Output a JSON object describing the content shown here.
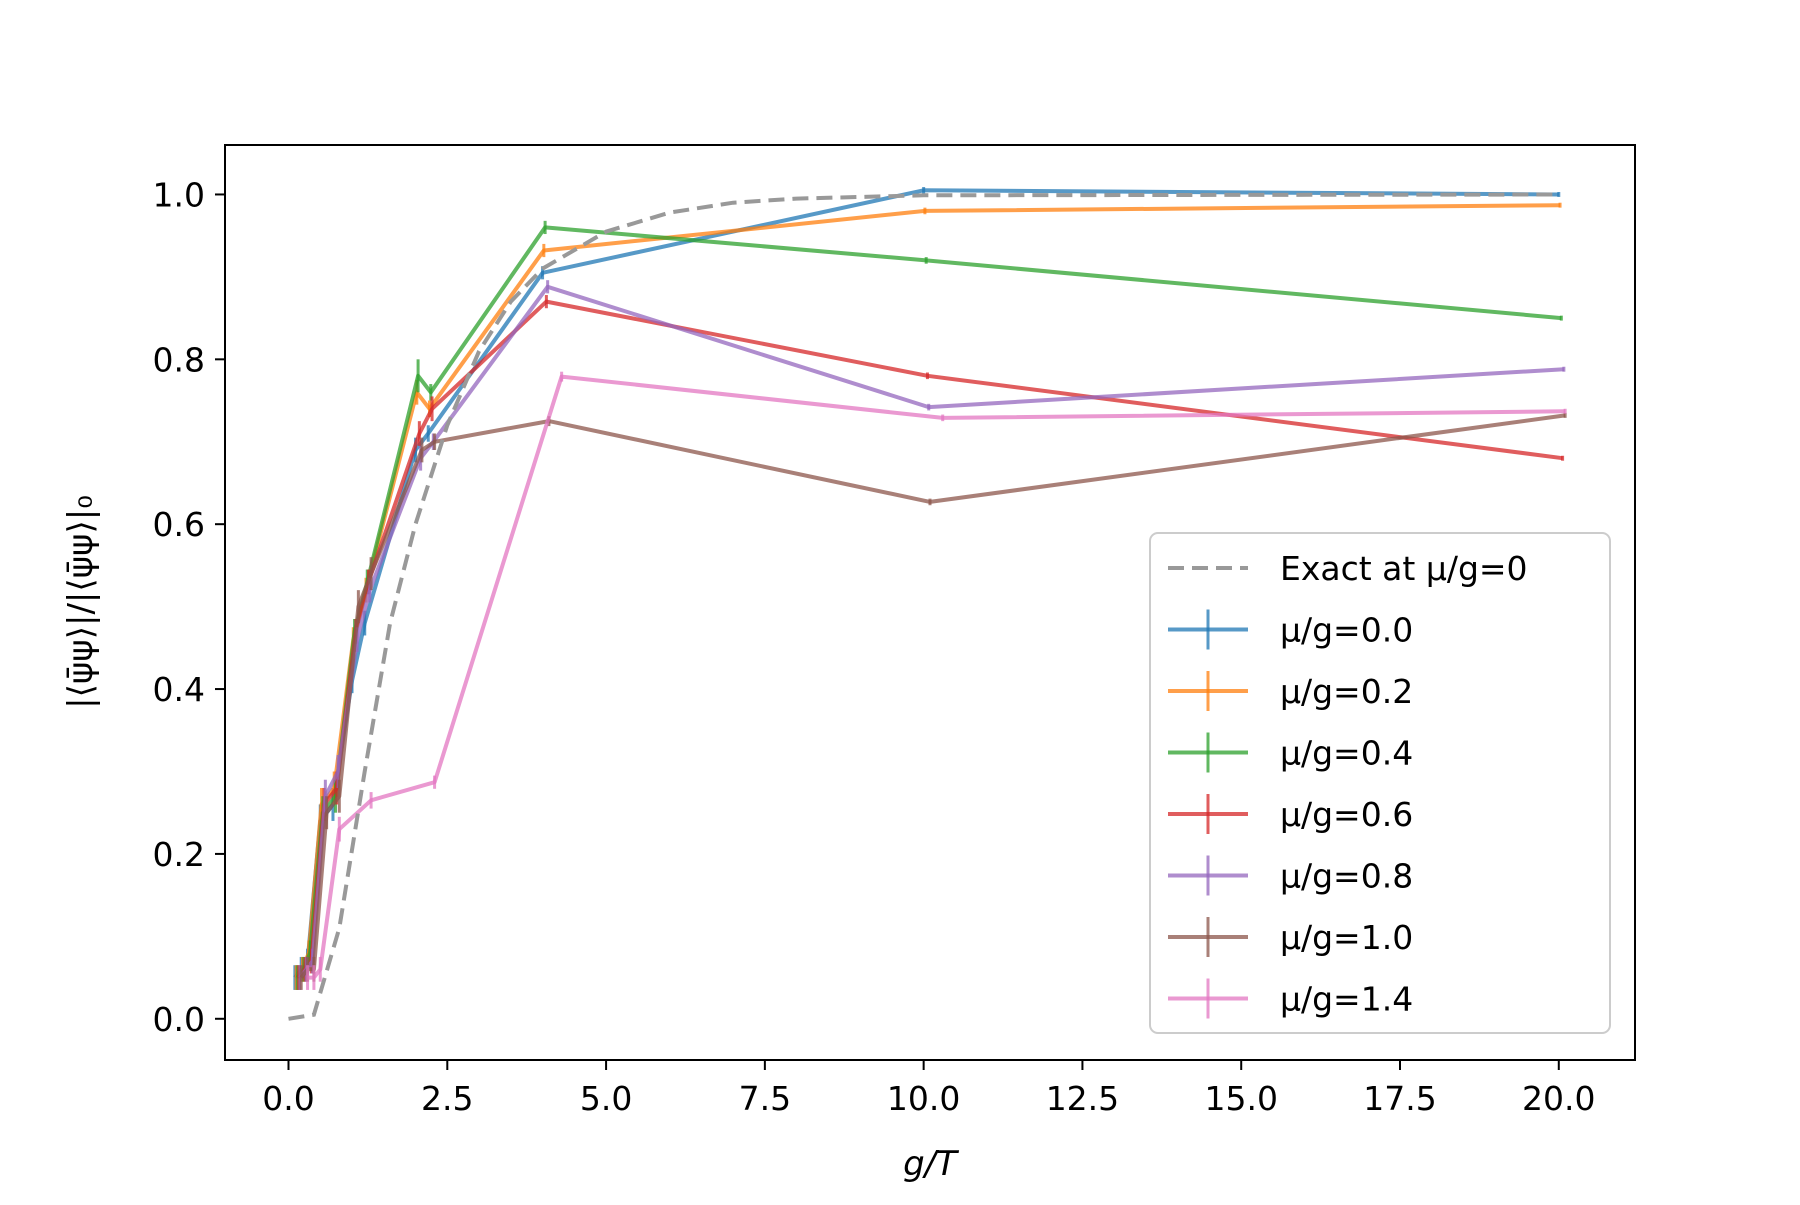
{
  "chart_data": {
    "type": "line",
    "title": "",
    "xlabel": "g/T",
    "ylabel": "|⟨ψ̄ψ⟩|/|⟨ψ̄ψ⟩|₀",
    "xlim": [
      -1.0,
      21.2
    ],
    "ylim": [
      -0.05,
      1.06
    ],
    "xticks": [
      0.0,
      2.5,
      5.0,
      7.5,
      10.0,
      12.5,
      15.0,
      17.5,
      20.0
    ],
    "xtick_labels": [
      "0.0",
      "2.5",
      "5.0",
      "7.5",
      "10.0",
      "12.5",
      "15.0",
      "17.5",
      "20.0"
    ],
    "yticks": [
      0.0,
      0.2,
      0.4,
      0.6,
      0.8,
      1.0
    ],
    "ytick_labels": [
      "0.0",
      "0.2",
      "0.4",
      "0.6",
      "0.8",
      "1.0"
    ],
    "grid": false,
    "legend_position": "lower right",
    "exact": {
      "name": "Exact at μ/g=0",
      "color": "#999999",
      "style": "dashed",
      "x": [
        0.0,
        0.4,
        0.8,
        1.2,
        1.6,
        2.0,
        2.5,
        3.0,
        3.5,
        4.0,
        5.0,
        6.0,
        7.0,
        8.0,
        10.0,
        20.0
      ],
      "y": [
        0.0,
        0.005,
        0.11,
        0.3,
        0.48,
        0.6,
        0.72,
        0.81,
        0.87,
        0.91,
        0.955,
        0.978,
        0.99,
        0.995,
        0.999,
        1.0
      ]
    },
    "series": [
      {
        "name": "μ/g=0.0",
        "color": "#1f77b4",
        "x": [
          0.1,
          0.2,
          0.3,
          0.5,
          0.7,
          1.0,
          1.2,
          2.0,
          2.2,
          4.0,
          10.0,
          20.0
        ],
        "y": [
          0.05,
          0.06,
          0.07,
          0.24,
          0.26,
          0.41,
          0.48,
          0.69,
          0.71,
          0.905,
          1.005,
          1.0
        ],
        "err": [
          0.015,
          0.015,
          0.015,
          0.02,
          0.02,
          0.015,
          0.015,
          0.015,
          0.01,
          0.008,
          0.004,
          0.003
        ]
      },
      {
        "name": "μ/g=0.2",
        "color": "#ff7f0e",
        "x": [
          0.12,
          0.22,
          0.32,
          0.52,
          0.72,
          1.02,
          1.22,
          2.02,
          2.22,
          4.02,
          10.02,
          20.02
        ],
        "y": [
          0.05,
          0.06,
          0.08,
          0.26,
          0.28,
          0.46,
          0.52,
          0.76,
          0.74,
          0.932,
          0.98,
          0.987
        ],
        "err": [
          0.015,
          0.015,
          0.015,
          0.02,
          0.02,
          0.015,
          0.015,
          0.015,
          0.01,
          0.008,
          0.004,
          0.003
        ]
      },
      {
        "name": "μ/g=0.4",
        "color": "#2ca02c",
        "x": [
          0.14,
          0.24,
          0.34,
          0.54,
          0.74,
          1.04,
          1.24,
          2.04,
          2.24,
          4.04,
          10.04,
          20.04
        ],
        "y": [
          0.05,
          0.06,
          0.08,
          0.25,
          0.27,
          0.47,
          0.53,
          0.78,
          0.76,
          0.96,
          0.92,
          0.85
        ],
        "err": [
          0.015,
          0.015,
          0.015,
          0.02,
          0.02,
          0.015,
          0.015,
          0.02,
          0.01,
          0.008,
          0.004,
          0.003
        ]
      },
      {
        "name": "μ/g=0.6",
        "color": "#d62728",
        "x": [
          0.16,
          0.26,
          0.36,
          0.56,
          0.76,
          1.06,
          1.26,
          2.06,
          2.26,
          4.06,
          10.06,
          20.06
        ],
        "y": [
          0.05,
          0.06,
          0.07,
          0.26,
          0.28,
          0.47,
          0.53,
          0.71,
          0.74,
          0.87,
          0.78,
          0.68
        ],
        "err": [
          0.015,
          0.015,
          0.015,
          0.02,
          0.02,
          0.015,
          0.015,
          0.015,
          0.015,
          0.008,
          0.004,
          0.003
        ]
      },
      {
        "name": "μ/g=0.8",
        "color": "#9467bd",
        "x": [
          0.18,
          0.28,
          0.38,
          0.58,
          0.78,
          1.08,
          1.28,
          2.08,
          2.28,
          4.08,
          10.08,
          20.08
        ],
        "y": [
          0.05,
          0.06,
          0.07,
          0.27,
          0.3,
          0.46,
          0.52,
          0.68,
          0.7,
          0.888,
          0.742,
          0.788
        ],
        "err": [
          0.015,
          0.015,
          0.015,
          0.02,
          0.02,
          0.015,
          0.015,
          0.015,
          0.01,
          0.008,
          0.004,
          0.003
        ]
      },
      {
        "name": "μ/g=1.0",
        "color": "#8c564b",
        "x": [
          0.2,
          0.3,
          0.4,
          0.6,
          0.8,
          1.1,
          1.3,
          2.1,
          2.3,
          4.1,
          10.1,
          20.1
        ],
        "y": [
          0.05,
          0.06,
          0.06,
          0.25,
          0.27,
          0.5,
          0.54,
          0.69,
          0.7,
          0.725,
          0.627,
          0.732
        ],
        "err": [
          0.015,
          0.015,
          0.015,
          0.02,
          0.02,
          0.02,
          0.02,
          0.015,
          0.01,
          0.006,
          0.004,
          0.003
        ]
      },
      {
        "name": "μ/g=1.4",
        "color": "#e377c2",
        "x": [
          0.3,
          0.4,
          0.5,
          0.8,
          1.3,
          2.3,
          4.3,
          10.3,
          20.1
        ],
        "y": [
          0.05,
          0.05,
          0.06,
          0.23,
          0.265,
          0.287,
          0.779,
          0.729,
          0.737
        ],
        "err": [
          0.015,
          0.015,
          0.015,
          0.015,
          0.01,
          0.008,
          0.006,
          0.004,
          0.003
        ]
      }
    ]
  }
}
